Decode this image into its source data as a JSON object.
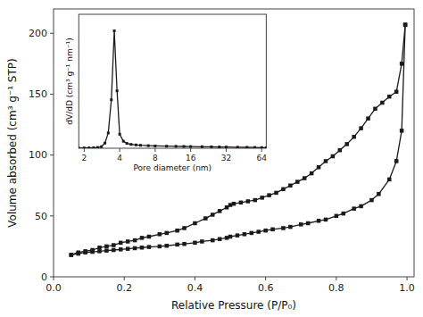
{
  "chart_data": [
    {
      "type": "line",
      "x_label": "Relative Pressure (P/P₀)",
      "y_label": "Volume absorbed (cm³ g⁻¹ STP)",
      "xlim": [
        0.0,
        1.02
      ],
      "ylim": [
        0,
        220
      ],
      "xticks": [
        {
          "value": 0.0,
          "label": "0.0"
        },
        0.2,
        0.4,
        0.6,
        0.8,
        {
          "value": 1.0,
          "label": "1.0"
        }
      ],
      "yticks": [
        0,
        50,
        100,
        150,
        200
      ],
      "series": [
        {
          "color": "#1a1a1a",
          "marker": "square",
          "x": [
            0.05,
            0.07,
            0.09,
            0.11,
            0.13,
            0.15,
            0.17,
            0.19,
            0.21,
            0.23,
            0.25,
            0.27,
            0.3,
            0.32,
            0.35,
            0.37,
            0.4,
            0.42,
            0.45,
            0.47,
            0.49,
            0.5,
            0.52,
            0.54,
            0.56,
            0.58,
            0.6,
            0.62,
            0.65,
            0.67,
            0.7,
            0.72,
            0.75,
            0.77,
            0.8,
            0.82,
            0.85,
            0.87,
            0.9,
            0.92,
            0.95,
            0.97,
            0.985,
            0.995
          ],
          "values": [
            18,
            19,
            20,
            20.5,
            21,
            21.5,
            22,
            22.5,
            23,
            23.5,
            24,
            24.5,
            25,
            25.5,
            26.5,
            27,
            28,
            29,
            30,
            31,
            32,
            33,
            34,
            35,
            36,
            37,
            38,
            39,
            40,
            41,
            43,
            44,
            46,
            47,
            50,
            52,
            56,
            58,
            63,
            68,
            80,
            95,
            120,
            207
          ]
        },
        {
          "color": "#1a1a1a",
          "marker": "square",
          "x": [
            0.995,
            0.985,
            0.97,
            0.95,
            0.93,
            0.91,
            0.89,
            0.87,
            0.85,
            0.83,
            0.81,
            0.79,
            0.77,
            0.75,
            0.73,
            0.71,
            0.69,
            0.67,
            0.65,
            0.63,
            0.61,
            0.59,
            0.57,
            0.55,
            0.53,
            0.51,
            0.5,
            0.49,
            0.47,
            0.45,
            0.43,
            0.4,
            0.37,
            0.35,
            0.32,
            0.3,
            0.27,
            0.25,
            0.23,
            0.21,
            0.19,
            0.17,
            0.15,
            0.13,
            0.11,
            0.09,
            0.07,
            0.05
          ],
          "values": [
            207,
            175,
            152,
            148,
            143,
            138,
            130,
            122,
            115,
            109,
            104,
            99,
            95,
            90,
            85,
            81,
            78,
            75,
            72,
            69,
            67,
            65,
            63,
            62,
            61,
            60,
            59,
            57,
            54,
            51,
            48,
            44,
            40,
            38,
            36,
            35,
            33,
            32,
            30,
            29,
            28,
            26,
            25,
            24,
            22,
            21,
            20,
            18
          ]
        }
      ]
    },
    {
      "type": "line",
      "x_label": "Pore diameter (nm)",
      "y_label": "dV/dD (cm³ g⁻¹ nm⁻¹)",
      "log": "x",
      "tick_labels": "x",
      "xlim": [
        1.8,
        70
      ],
      "ylim": [
        0,
        10.5
      ],
      "xticks": [
        2,
        4,
        8,
        16,
        32,
        64
      ],
      "series": [
        {
          "color": "#1a1a1a",
          "marker": "square",
          "x": [
            1.8,
            2.0,
            2.2,
            2.4,
            2.6,
            2.8,
            3.0,
            3.2,
            3.4,
            3.6,
            3.8,
            4.0,
            4.3,
            4.6,
            5.0,
            5.5,
            6.0,
            7.0,
            8.0,
            10.0,
            12.0,
            14.0,
            16.0,
            20.0,
            24.0,
            28.0,
            32.0,
            40.0,
            48.0,
            56.0,
            64.0,
            70.0
          ],
          "values": [
            0.01,
            0.02,
            0.03,
            0.04,
            0.06,
            0.12,
            0.4,
            1.2,
            3.8,
            9.2,
            4.5,
            1.1,
            0.55,
            0.38,
            0.3,
            0.26,
            0.23,
            0.2,
            0.18,
            0.16,
            0.15,
            0.14,
            0.13,
            0.12,
            0.11,
            0.1,
            0.09,
            0.08,
            0.07,
            0.06,
            0.05,
            0.04
          ]
        }
      ]
    }
  ]
}
